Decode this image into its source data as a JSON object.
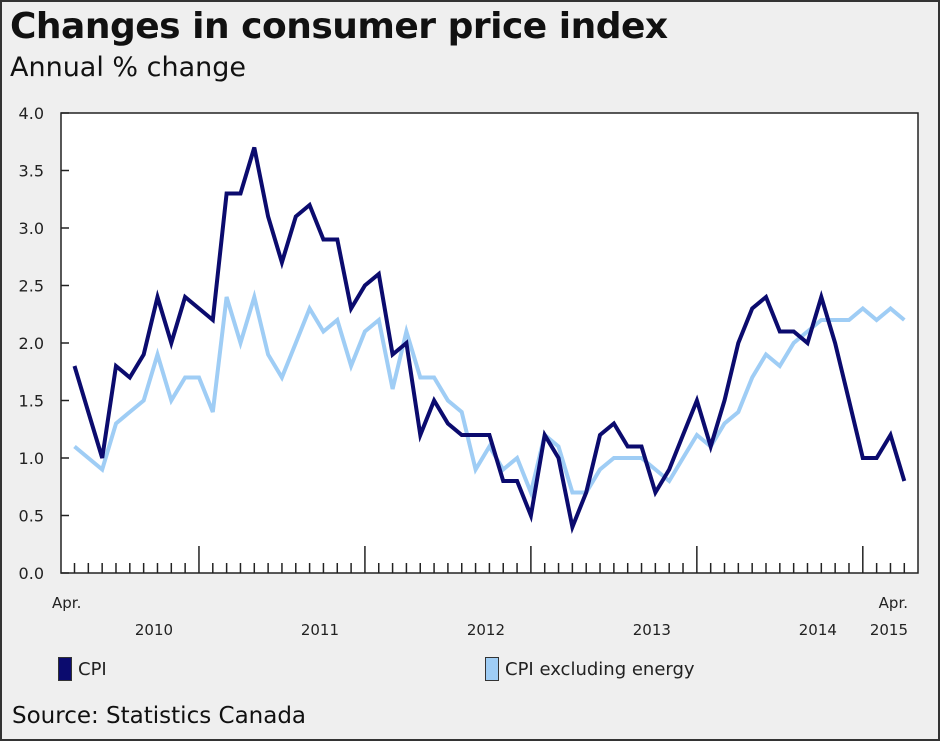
{
  "header": {
    "title": "Changes in consumer price index",
    "subtitle": "Annual % change"
  },
  "footer": {
    "source": "Source: Statistics Canada"
  },
  "chart_data": {
    "type": "line",
    "title": "Changes in consumer price index",
    "subtitle": "Annual % change",
    "xlabel": "",
    "ylabel": "Annual % change",
    "ylim": [
      0.0,
      4.0
    ],
    "yticks": [
      "0.0",
      "0.5",
      "1.0",
      "1.5",
      "2.0",
      "2.5",
      "3.0",
      "3.5",
      "4.0"
    ],
    "x_start": "Apr. 2010",
    "x_end": "Apr. 2015",
    "x_tick_labels": [
      {
        "month_index": 0,
        "line1": "Apr.",
        "line2": "2010"
      },
      {
        "month_index": 9,
        "line1": "",
        "line2": "2011"
      },
      {
        "month_index": 21,
        "line1": "",
        "line2": "2012"
      },
      {
        "month_index": 33,
        "line1": "",
        "line2": "2013"
      },
      {
        "month_index": 45,
        "line1": "",
        "line2": "2014"
      },
      {
        "month_index": 60,
        "line1": "Apr.",
        "line2": "2015"
      }
    ],
    "year_label_positions": [
      {
        "label": "2010",
        "month_index": 3
      },
      {
        "label": "2011",
        "month_index": 15
      },
      {
        "label": "2012",
        "month_index": 27
      },
      {
        "label": "2013",
        "month_index": 39
      },
      {
        "label": "2014",
        "month_index": 51
      }
    ],
    "major_tick_month_indices": [
      9,
      21,
      33,
      45,
      57
    ],
    "grid": false,
    "legend_position": "bottom",
    "series": [
      {
        "name": "CPI",
        "color": "#0b0b6e",
        "values": [
          1.8,
          1.4,
          1.0,
          1.8,
          1.7,
          1.9,
          2.4,
          2.0,
          2.4,
          2.3,
          2.2,
          3.3,
          3.3,
          3.7,
          3.1,
          2.7,
          3.1,
          3.2,
          2.9,
          2.9,
          2.3,
          2.5,
          2.6,
          1.9,
          2.0,
          1.2,
          1.5,
          1.3,
          1.2,
          1.2,
          1.2,
          0.8,
          0.8,
          0.5,
          1.2,
          1.0,
          0.4,
          0.7,
          1.2,
          1.3,
          1.1,
          1.1,
          0.7,
          0.9,
          1.2,
          1.5,
          1.1,
          1.5,
          2.0,
          2.3,
          2.4,
          2.1,
          2.1,
          2.0,
          2.4,
          2.0,
          1.5,
          1.0,
          1.0,
          1.2,
          0.8
        ]
      },
      {
        "name": "CPI excluding energy",
        "color": "#9fcdf5",
        "values": [
          1.1,
          1.0,
          0.9,
          1.3,
          1.4,
          1.5,
          1.9,
          1.5,
          1.7,
          1.7,
          1.4,
          2.4,
          2.0,
          2.4,
          1.9,
          1.7,
          2.0,
          2.3,
          2.1,
          2.2,
          1.8,
          2.1,
          2.2,
          1.6,
          2.1,
          1.7,
          1.7,
          1.5,
          1.4,
          0.9,
          1.1,
          0.9,
          1.0,
          0.7,
          1.2,
          1.1,
          0.7,
          0.7,
          0.9,
          1.0,
          1.0,
          1.0,
          0.9,
          0.8,
          1.0,
          1.2,
          1.1,
          1.3,
          1.4,
          1.7,
          1.9,
          1.8,
          2.0,
          2.1,
          2.2,
          2.2,
          2.2,
          2.3,
          2.2,
          2.3,
          2.2
        ]
      }
    ]
  },
  "legend": {
    "items": [
      {
        "label": "CPI",
        "color": "#0b0b6e"
      },
      {
        "label": "CPI excluding energy",
        "color": "#9fcdf5"
      }
    ]
  }
}
